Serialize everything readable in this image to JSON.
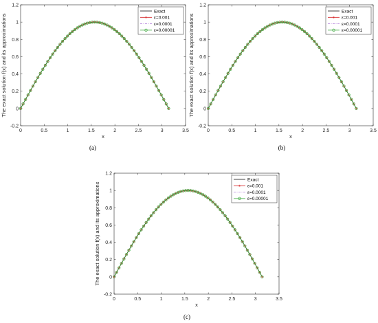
{
  "chart_data": [
    {
      "type": "line",
      "caption": "(a)",
      "xlabel": "x",
      "ylabel": "The exact solution f(x) and its approximations",
      "xlim": [
        0,
        3.5
      ],
      "ylim": [
        -0.2,
        1.2
      ],
      "xticks": [
        "0",
        "0.5",
        "1",
        "1.5",
        "2",
        "2.5",
        "3",
        "3.5"
      ],
      "yticks": [
        "-0.2",
        "0",
        "0.2",
        "0.4",
        "0.6",
        "0.8",
        "1",
        "1.2"
      ],
      "legend_position": "top-right",
      "function": "sin(x)",
      "x_range": [
        0,
        3.14159
      ],
      "series": [
        {
          "name": "Exact",
          "color": "#000000",
          "marker": "none",
          "dash": "solid"
        },
        {
          "name": "ε=0.001",
          "color": "#d62728",
          "marker": "asterisk",
          "dash": "solid"
        },
        {
          "name": "ε=0.0001",
          "color": "#b07ad9",
          "marker": "none",
          "dash": "dashdot"
        },
        {
          "name": "ε=0.00001",
          "color": "#2ca02c",
          "marker": "circle",
          "dash": "solid"
        }
      ]
    },
    {
      "type": "line",
      "caption": "(b)",
      "xlabel": "x",
      "ylabel": "The exact solution f(x) and its approximations",
      "xlim": [
        0,
        3.5
      ],
      "ylim": [
        -0.2,
        1.2
      ],
      "xticks": [
        "0",
        "0.5",
        "1",
        "1.5",
        "2",
        "2.5",
        "3",
        "3.5"
      ],
      "yticks": [
        "-0.2",
        "0",
        "0.2",
        "0.4",
        "0.6",
        "0.8",
        "1",
        "1.2"
      ],
      "legend_position": "top-right",
      "function": "sin(x)",
      "x_range": [
        0,
        3.14159
      ],
      "series": [
        {
          "name": "Exact",
          "color": "#000000",
          "marker": "none",
          "dash": "solid"
        },
        {
          "name": "ε=0.001",
          "color": "#d62728",
          "marker": "asterisk",
          "dash": "solid"
        },
        {
          "name": "ε=0.0001",
          "color": "#b07ad9",
          "marker": "none",
          "dash": "dashdot"
        },
        {
          "name": "ε=0.00001",
          "color": "#2ca02c",
          "marker": "circle",
          "dash": "solid"
        }
      ]
    },
    {
      "type": "line",
      "caption": "(c)",
      "xlabel": "x",
      "ylabel": "The exact solution f(x) and its approximations",
      "xlim": [
        0,
        3.5
      ],
      "ylim": [
        -0.2,
        1.2
      ],
      "xticks": [
        "0",
        "0.5",
        "1",
        "1.5",
        "2",
        "2.5",
        "3",
        "3.5"
      ],
      "yticks": [
        "-0.2",
        "0",
        "0.2",
        "0.4",
        "0.6",
        "0.8",
        "1",
        "1.2"
      ],
      "legend_position": "top-right",
      "function": "sin(x)",
      "x_range": [
        0,
        3.14159
      ],
      "series": [
        {
          "name": "Exact",
          "color": "#000000",
          "marker": "none",
          "dash": "solid"
        },
        {
          "name": "ε=0.001",
          "color": "#d62728",
          "marker": "asterisk",
          "dash": "solid"
        },
        {
          "name": "ε=0.0001",
          "color": "#b07ad9",
          "marker": "none",
          "dash": "dashdot"
        },
        {
          "name": "ε=0.00001",
          "color": "#2ca02c",
          "marker": "circle",
          "dash": "solid"
        }
      ]
    }
  ]
}
